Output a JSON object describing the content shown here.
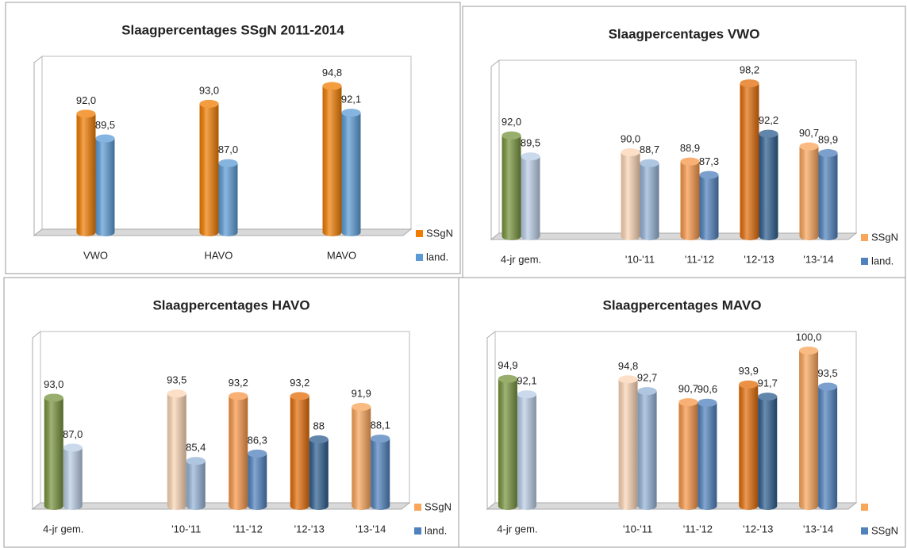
{
  "chart_data": [
    {
      "type": "bar",
      "title": "Slaagpercentages SSgN 2011-2014",
      "categories": [
        "VWO",
        "HAVO",
        "MAVO"
      ],
      "series": [
        {
          "name": "SSgN",
          "color": "#f07c00",
          "values": [
            92.0,
            93.0,
            94.8
          ],
          "value_labels": [
            "92,0",
            "93,0",
            "94,8"
          ]
        },
        {
          "name": "land.",
          "color": "#5b9bd5",
          "values": [
            89.5,
            87.0,
            92.1
          ],
          "value_labels": [
            "89,5",
            "87,0",
            "92,1"
          ]
        }
      ],
      "ylim": [
        80,
        97
      ]
    },
    {
      "type": "bar",
      "title": "Slaagpercentages VWO",
      "categories": [
        "4-jr gem.",
        null,
        "'10-'11",
        "'11-'12",
        "'12-'13",
        "'13-'14"
      ],
      "series": [
        {
          "name": "SSgN",
          "color": "#f9a55a",
          "colors": [
            "#77933c",
            null,
            "#fcd5b5",
            "#f79646",
            "#e36c09",
            "#f9a55a"
          ],
          "values": [
            92.0,
            null,
            90.0,
            88.9,
            98.2,
            90.7
          ],
          "value_labels": [
            "92,0",
            null,
            "90,0",
            "88,9",
            "98,2",
            "90,7"
          ]
        },
        {
          "name": "land.",
          "color": "#4f81bd",
          "colors": [
            "#b9cde5",
            null,
            "#95b3d7",
            "#4f81bd",
            "#2c5d8f",
            "#4f81bd"
          ],
          "values": [
            89.5,
            null,
            88.7,
            87.3,
            92.2,
            89.9
          ],
          "value_labels": [
            "89,5",
            null,
            "88,7",
            "87,3",
            "92,2",
            "89,9"
          ]
        }
      ],
      "ylim": [
        80,
        100
      ]
    },
    {
      "type": "bar",
      "title": "Slaagpercentages HAVO",
      "categories": [
        "4-jr gem.",
        null,
        "'10-'11",
        "'11-'12",
        "'12-'13",
        "'13-'14"
      ],
      "series": [
        {
          "name": "SSgN",
          "color": "#f9a55a",
          "colors": [
            "#77933c",
            null,
            "#fcd5b5",
            "#f79646",
            "#e36c09",
            "#f9a55a"
          ],
          "values": [
            93.0,
            null,
            93.5,
            93.2,
            93.2,
            91.9
          ],
          "value_labels": [
            "93,0",
            null,
            "93,5",
            "93,2",
            "93,2",
            "91,9"
          ]
        },
        {
          "name": "land.",
          "color": "#4f81bd",
          "colors": [
            "#b9cde5",
            null,
            "#95b3d7",
            "#4f81bd",
            "#2c5d8f",
            "#4f81bd"
          ],
          "values": [
            87.0,
            null,
            85.4,
            86.3,
            88,
            88.1
          ],
          "value_labels": [
            "87,0",
            null,
            "85,4",
            "86,3",
            "88",
            "88,1"
          ]
        }
      ],
      "ylim": [
        80,
        100
      ]
    },
    {
      "type": "bar",
      "title": "Slaagpercentages MAVO",
      "categories": [
        "4-jr gem.",
        null,
        "'10-'11",
        "'11-'12",
        "'12-'13",
        "'13-'14"
      ],
      "series": [
        {
          "name": null,
          "color": "#f9a55a",
          "colors": [
            "#77933c",
            null,
            "#fcd5b5",
            "#f79646",
            "#e36c09",
            "#f9a55a"
          ],
          "values": [
            94.9,
            null,
            94.8,
            90.7,
            93.9,
            100.0
          ],
          "value_labels": [
            "94,9",
            null,
            "94,8",
            "90,7",
            "93,9",
            "100,0"
          ]
        },
        {
          "name": "SSgN",
          "color": "#4f81bd",
          "colors": [
            "#b9cde5",
            null,
            "#95b3d7",
            "#4f81bd",
            "#2c5d8f",
            "#4f81bd"
          ],
          "values": [
            92.1,
            null,
            92.7,
            90.6,
            91.7,
            93.5
          ],
          "value_labels": [
            "92,1",
            null,
            "92,7",
            "90,6",
            "91,7",
            "93,5"
          ]
        }
      ],
      "ylim": [
        72,
        102
      ]
    }
  ]
}
